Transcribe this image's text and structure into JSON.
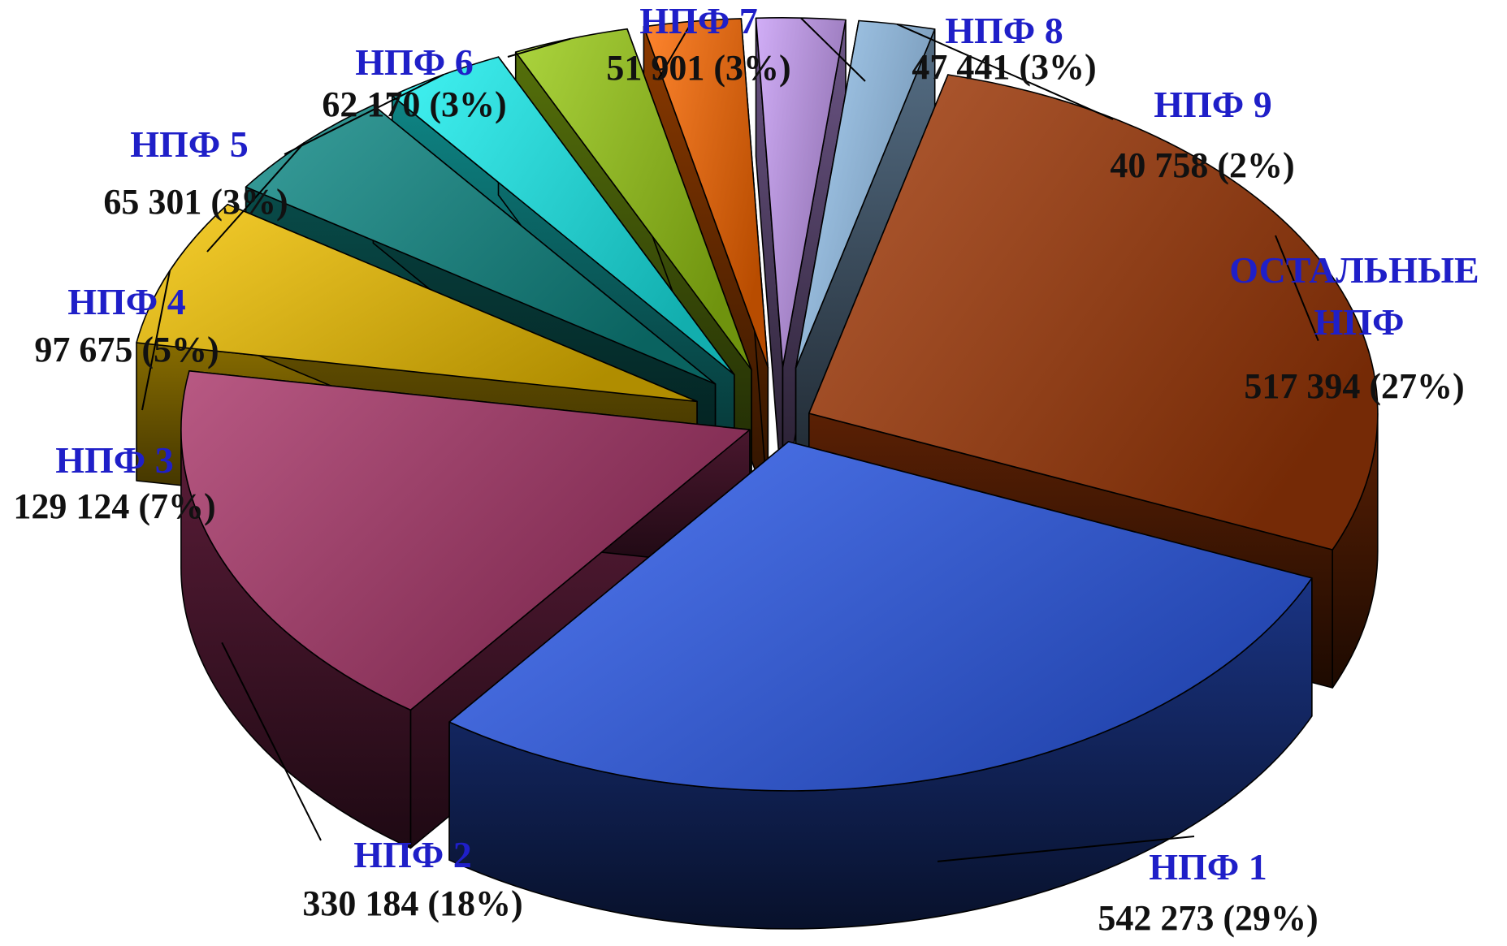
{
  "chart_data": {
    "type": "pie",
    "style": "3d-exploded",
    "title": "",
    "slices": [
      {
        "label": "НПФ 1",
        "value": 542273,
        "value_text": "542 273 (29%)",
        "percent": 29,
        "color": "#2f5ef0"
      },
      {
        "label": "НПФ 2",
        "value": 330184,
        "value_text": "330 184 (18%)",
        "percent": 18,
        "color": "#a83468"
      },
      {
        "label": "НПФ 3",
        "value": 129124,
        "value_text": "129 124 (7%)",
        "percent": 7,
        "color": "#f5c400"
      },
      {
        "label": "НПФ 4",
        "value": 97675,
        "value_text": "97 675 (5%)",
        "percent": 5,
        "color": "#0e8a86"
      },
      {
        "label": "НПФ 5",
        "value": 65301,
        "value_text": "65 301 (3%)",
        "percent": 3,
        "color": "#19f2f2"
      },
      {
        "label": "НПФ 6",
        "value": 62170,
        "value_text": "62 170 (3%)",
        "percent": 3,
        "color": "#9acc14"
      },
      {
        "label": "НПФ 7",
        "value": 51901,
        "value_text": "51 901 (3%)",
        "percent": 3,
        "color": "#ff6a00"
      },
      {
        "label": "НПФ 8",
        "value": 47441,
        "value_text": "47 441 (3%)",
        "percent": 3,
        "color": "#c79cf5"
      },
      {
        "label": "НПФ 9",
        "value": 40758,
        "value_text": "40 758 (2%)",
        "percent": 2,
        "color": "#9ccaf4"
      },
      {
        "label": "ОСТАЛЬНЫЕ НПФ",
        "label_lines": [
          "ОСТАЛЬНЫЕ",
          "НПФ"
        ],
        "value": 517394,
        "value_text": "517 394 (27%)",
        "percent": 27,
        "color": "#a33a08"
      }
    ],
    "legend": "none",
    "grid": false
  }
}
